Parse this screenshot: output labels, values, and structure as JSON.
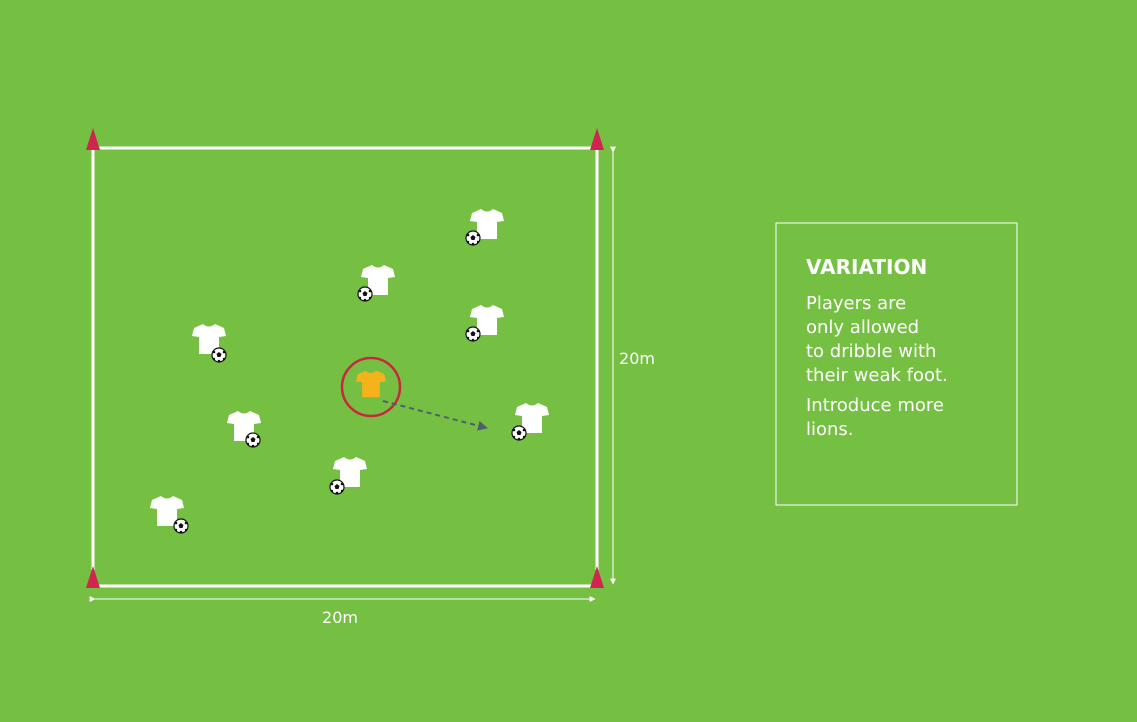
{
  "field": {
    "width_label": "20m",
    "height_label": "20m"
  },
  "variation": {
    "title": "VARIATION",
    "paragraphs": [
      [
        "Players are",
        "only allowed",
        "to dribble with",
        "their weak foot."
      ],
      [
        "Introduce more",
        "lions."
      ]
    ]
  }
}
